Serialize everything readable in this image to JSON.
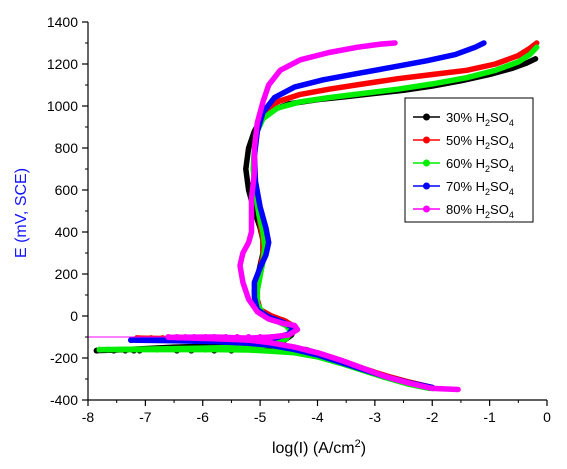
{
  "chart_data": {
    "type": "line",
    "title": "",
    "xlabel": "log(I) (A/cm",
    "xlabel_sup": "2",
    "xlabel_end": ")",
    "ylabel": "E (mV, SCE)",
    "xlim": [
      -8,
      0
    ],
    "ylim": [
      -400,
      1400
    ],
    "x_ticks": [
      -8,
      -7,
      -6,
      -5,
      -4,
      -3,
      -2,
      -1,
      0
    ],
    "y_ticks": [
      -400,
      -200,
      0,
      200,
      400,
      600,
      800,
      1000,
      1200,
      1400
    ],
    "x_tick_labels": [
      "-8",
      "-7",
      "-6",
      "-5",
      "-4",
      "-3",
      "-2",
      "-1",
      "0"
    ],
    "y_tick_labels": [
      "-400",
      "-200",
      "0",
      "200",
      "400",
      "600",
      "800",
      "1000",
      "1200",
      "1400"
    ],
    "grid": false,
    "legend_position": "right",
    "colors": {
      "ylabel": "#1515ff",
      "axis": "#000000"
    },
    "series": [
      {
        "name": "30% H2SO4",
        "label_prefix": "30% H",
        "label_sub1": "2",
        "label_mid": "SO",
        "label_sub2": "4",
        "color": "#000000",
        "cathodic_pts": [
          [
            -7.85,
            -165
          ],
          [
            -7.55,
            -165
          ],
          [
            -7.35,
            -165
          ],
          [
            -7.2,
            -165
          ],
          [
            -7.1,
            -165
          ],
          [
            -6.45,
            -165
          ],
          [
            -6.2,
            -165
          ],
          [
            -5.8,
            -165
          ],
          [
            -5.5,
            -165
          ]
        ],
        "path": [
          [
            -2.0,
            -345
          ],
          [
            -2.4,
            -320
          ],
          [
            -2.8,
            -290
          ],
          [
            -3.2,
            -255
          ],
          [
            -3.6,
            -215
          ],
          [
            -3.9,
            -185
          ],
          [
            -4.2,
            -160
          ],
          [
            -4.6,
            -150
          ],
          [
            -5.0,
            -146
          ],
          [
            -5.5,
            -145
          ],
          [
            -6.0,
            -145
          ],
          [
            -6.5,
            -148
          ],
          [
            -7.0,
            -155
          ],
          [
            -7.5,
            -162
          ],
          [
            -7.85,
            -165
          ],
          [
            -7.5,
            -162
          ],
          [
            -7.0,
            -157
          ],
          [
            -6.5,
            -153
          ],
          [
            -6.0,
            -150
          ],
          [
            -5.5,
            -145
          ],
          [
            -5.0,
            -138
          ],
          [
            -4.6,
            -120
          ],
          [
            -4.45,
            -90
          ],
          [
            -4.4,
            -50
          ],
          [
            -4.6,
            -20
          ],
          [
            -4.8,
            -5
          ],
          [
            -5.0,
            25
          ],
          [
            -5.08,
            60
          ],
          [
            -5.1,
            120
          ],
          [
            -5.05,
            180
          ],
          [
            -5.0,
            240
          ],
          [
            -4.95,
            300
          ],
          [
            -4.95,
            360
          ],
          [
            -5.0,
            420
          ],
          [
            -5.1,
            500
          ],
          [
            -5.2,
            600
          ],
          [
            -5.25,
            700
          ],
          [
            -5.2,
            800
          ],
          [
            -5.1,
            880
          ],
          [
            -5.0,
            930
          ],
          [
            -4.8,
            980
          ],
          [
            -4.5,
            1010
          ],
          [
            -4.0,
            1030
          ],
          [
            -3.5,
            1045
          ],
          [
            -3.0,
            1060
          ],
          [
            -2.5,
            1075
          ],
          [
            -2.0,
            1095
          ],
          [
            -1.5,
            1120
          ],
          [
            -1.0,
            1150
          ],
          [
            -0.6,
            1180
          ],
          [
            -0.35,
            1205
          ],
          [
            -0.2,
            1225
          ]
        ]
      },
      {
        "name": "50% H2SO4",
        "label_prefix": "50% H",
        "label_sub1": "2",
        "label_mid": "SO",
        "label_sub2": "4",
        "color": "#ff0000",
        "cathodic_pts": [
          [
            -7.15,
            -105
          ],
          [
            -6.9,
            -105
          ],
          [
            -6.7,
            -105
          ],
          [
            -6.5,
            -105
          ],
          [
            -6.3,
            -105
          ],
          [
            -6.0,
            -105
          ]
        ],
        "path": [
          [
            -2.0,
            -340
          ],
          [
            -2.4,
            -315
          ],
          [
            -2.8,
            -285
          ],
          [
            -3.2,
            -250
          ],
          [
            -3.6,
            -210
          ],
          [
            -4.0,
            -175
          ],
          [
            -4.4,
            -150
          ],
          [
            -4.8,
            -135
          ],
          [
            -5.2,
            -125
          ],
          [
            -5.8,
            -118
          ],
          [
            -6.4,
            -110
          ],
          [
            -7.15,
            -105
          ],
          [
            -6.4,
            -108
          ],
          [
            -5.8,
            -112
          ],
          [
            -5.2,
            -120
          ],
          [
            -4.8,
            -115
          ],
          [
            -4.5,
            -90
          ],
          [
            -4.4,
            -55
          ],
          [
            -4.55,
            -25
          ],
          [
            -4.8,
            0
          ],
          [
            -5.0,
            30
          ],
          [
            -5.05,
            80
          ],
          [
            -5.05,
            150
          ],
          [
            -5.0,
            220
          ],
          [
            -4.95,
            290
          ],
          [
            -4.95,
            360
          ],
          [
            -5.0,
            440
          ],
          [
            -5.05,
            550
          ],
          [
            -5.1,
            660
          ],
          [
            -5.1,
            780
          ],
          [
            -5.05,
            880
          ],
          [
            -4.95,
            960
          ],
          [
            -4.7,
            1020
          ],
          [
            -4.3,
            1055
          ],
          [
            -3.8,
            1080
          ],
          [
            -3.2,
            1105
          ],
          [
            -2.6,
            1130
          ],
          [
            -2.0,
            1150
          ],
          [
            -1.4,
            1170
          ],
          [
            -0.9,
            1200
          ],
          [
            -0.5,
            1240
          ],
          [
            -0.3,
            1275
          ],
          [
            -0.18,
            1300
          ]
        ]
      },
      {
        "name": "60% H2SO4",
        "label_prefix": "60% H",
        "label_sub1": "2",
        "label_mid": "SO",
        "label_sub2": "4",
        "color": "#00ee00",
        "cathodic_pts": [
          [
            -7.8,
            -160
          ],
          [
            -7.65,
            -160
          ],
          [
            -7.45,
            -160
          ],
          [
            -7.3,
            -160
          ],
          [
            -6.8,
            -160
          ],
          [
            -6.5,
            -160
          ],
          [
            -6.2,
            -160
          ],
          [
            -5.95,
            -160
          ],
          [
            -5.6,
            -160
          ],
          [
            -5.3,
            -160
          ]
        ],
        "path": [
          [
            -2.05,
            -345
          ],
          [
            -2.4,
            -325
          ],
          [
            -2.8,
            -295
          ],
          [
            -3.2,
            -260
          ],
          [
            -3.6,
            -225
          ],
          [
            -4.0,
            -195
          ],
          [
            -4.4,
            -175
          ],
          [
            -4.8,
            -168
          ],
          [
            -5.2,
            -162
          ],
          [
            -5.8,
            -160
          ],
          [
            -6.5,
            -160
          ],
          [
            -7.2,
            -160
          ],
          [
            -7.8,
            -160
          ],
          [
            -7.2,
            -158
          ],
          [
            -6.5,
            -155
          ],
          [
            -5.8,
            -152
          ],
          [
            -5.2,
            -148
          ],
          [
            -4.8,
            -135
          ],
          [
            -4.55,
            -110
          ],
          [
            -4.45,
            -75
          ],
          [
            -4.55,
            -45
          ],
          [
            -4.75,
            -20
          ],
          [
            -4.95,
            10
          ],
          [
            -5.05,
            60
          ],
          [
            -5.05,
            120
          ],
          [
            -5.0,
            190
          ],
          [
            -4.95,
            260
          ],
          [
            -4.92,
            330
          ],
          [
            -4.95,
            400
          ],
          [
            -5.02,
            480
          ],
          [
            -5.08,
            580
          ],
          [
            -5.12,
            700
          ],
          [
            -5.1,
            800
          ],
          [
            -5.05,
            880
          ],
          [
            -4.95,
            940
          ],
          [
            -4.7,
            990
          ],
          [
            -4.3,
            1020
          ],
          [
            -3.8,
            1040
          ],
          [
            -3.2,
            1060
          ],
          [
            -2.6,
            1080
          ],
          [
            -2.0,
            1105
          ],
          [
            -1.4,
            1135
          ],
          [
            -0.9,
            1170
          ],
          [
            -0.5,
            1210
          ],
          [
            -0.3,
            1245
          ],
          [
            -0.18,
            1280
          ]
        ]
      },
      {
        "name": "70% H2SO4",
        "label_prefix": "70% H",
        "label_sub1": "2",
        "label_mid": "SO",
        "label_sub2": "4",
        "color": "#0000ff",
        "cathodic_pts": [
          [
            -7.25,
            -115
          ],
          [
            -7.0,
            -115
          ],
          [
            -6.8,
            -115
          ],
          [
            -6.6,
            -115
          ],
          [
            -6.35,
            -115
          ],
          [
            -6.0,
            -115
          ]
        ],
        "path": [
          [
            -2.0,
            -340
          ],
          [
            -2.4,
            -318
          ],
          [
            -2.8,
            -290
          ],
          [
            -3.2,
            -255
          ],
          [
            -3.6,
            -220
          ],
          [
            -4.0,
            -185
          ],
          [
            -4.4,
            -160
          ],
          [
            -4.8,
            -140
          ],
          [
            -5.2,
            -130
          ],
          [
            -5.8,
            -122
          ],
          [
            -6.5,
            -118
          ],
          [
            -7.25,
            -115
          ],
          [
            -6.5,
            -113
          ],
          [
            -5.8,
            -115
          ],
          [
            -5.2,
            -118
          ],
          [
            -4.8,
            -110
          ],
          [
            -4.5,
            -85
          ],
          [
            -4.42,
            -55
          ],
          [
            -4.6,
            -30
          ],
          [
            -4.85,
            -5
          ],
          [
            -5.05,
            30
          ],
          [
            -5.1,
            90
          ],
          [
            -5.1,
            160
          ],
          [
            -5.0,
            230
          ],
          [
            -4.9,
            290
          ],
          [
            -4.85,
            350
          ],
          [
            -4.9,
            420
          ],
          [
            -5.0,
            520
          ],
          [
            -5.08,
            640
          ],
          [
            -5.1,
            760
          ],
          [
            -5.05,
            880
          ],
          [
            -4.95,
            970
          ],
          [
            -4.75,
            1040
          ],
          [
            -4.4,
            1090
          ],
          [
            -3.9,
            1125
          ],
          [
            -3.3,
            1155
          ],
          [
            -2.7,
            1185
          ],
          [
            -2.1,
            1215
          ],
          [
            -1.6,
            1245
          ],
          [
            -1.25,
            1280
          ],
          [
            -1.1,
            1300
          ]
        ]
      },
      {
        "name": "80% H2SO4",
        "label_prefix": "80% H",
        "label_sub1": "2",
        "label_mid": "SO",
        "label_sub2": "4",
        "color": "#ff00ff",
        "cathodic_pts": [
          [
            -6.6,
            -100
          ],
          [
            -6.45,
            -100
          ],
          [
            -6.3,
            -100
          ],
          [
            -6.15,
            -100
          ],
          [
            -5.95,
            -100
          ],
          [
            -5.8,
            -100
          ],
          [
            -5.6,
            -100
          ],
          [
            -5.4,
            -100
          ],
          [
            -5.2,
            -100
          ],
          [
            -5.0,
            -100
          ],
          [
            -4.8,
            -100
          ]
        ],
        "cathodic_line": [
          [
            -8.0,
            -100
          ],
          [
            -4.5,
            -100
          ]
        ],
        "path": [
          [
            -1.55,
            -350
          ],
          [
            -2.0,
            -345
          ],
          [
            -2.4,
            -320
          ],
          [
            -2.8,
            -290
          ],
          [
            -3.2,
            -250
          ],
          [
            -3.6,
            -210
          ],
          [
            -4.0,
            -175
          ],
          [
            -4.4,
            -148
          ],
          [
            -4.8,
            -128
          ],
          [
            -5.2,
            -115
          ],
          [
            -5.8,
            -108
          ],
          [
            -6.6,
            -102
          ],
          [
            -5.8,
            -100
          ],
          [
            -5.2,
            -105
          ],
          [
            -4.8,
            -100
          ],
          [
            -4.5,
            -90
          ],
          [
            -4.35,
            -65
          ],
          [
            -4.4,
            -45
          ],
          [
            -4.6,
            -35
          ],
          [
            -4.85,
            -15
          ],
          [
            -5.05,
            20
          ],
          [
            -5.2,
            80
          ],
          [
            -5.3,
            160
          ],
          [
            -5.35,
            240
          ],
          [
            -5.3,
            300
          ],
          [
            -5.2,
            350
          ],
          [
            -5.15,
            400
          ],
          [
            -5.15,
            460
          ],
          [
            -5.15,
            560
          ],
          [
            -5.1,
            680
          ],
          [
            -5.1,
            800
          ],
          [
            -5.05,
            920
          ],
          [
            -4.95,
            1020
          ],
          [
            -4.85,
            1100
          ],
          [
            -4.65,
            1170
          ],
          [
            -4.3,
            1220
          ],
          [
            -3.8,
            1255
          ],
          [
            -3.3,
            1280
          ],
          [
            -2.9,
            1295
          ],
          [
            -2.65,
            1300
          ]
        ]
      }
    ]
  }
}
